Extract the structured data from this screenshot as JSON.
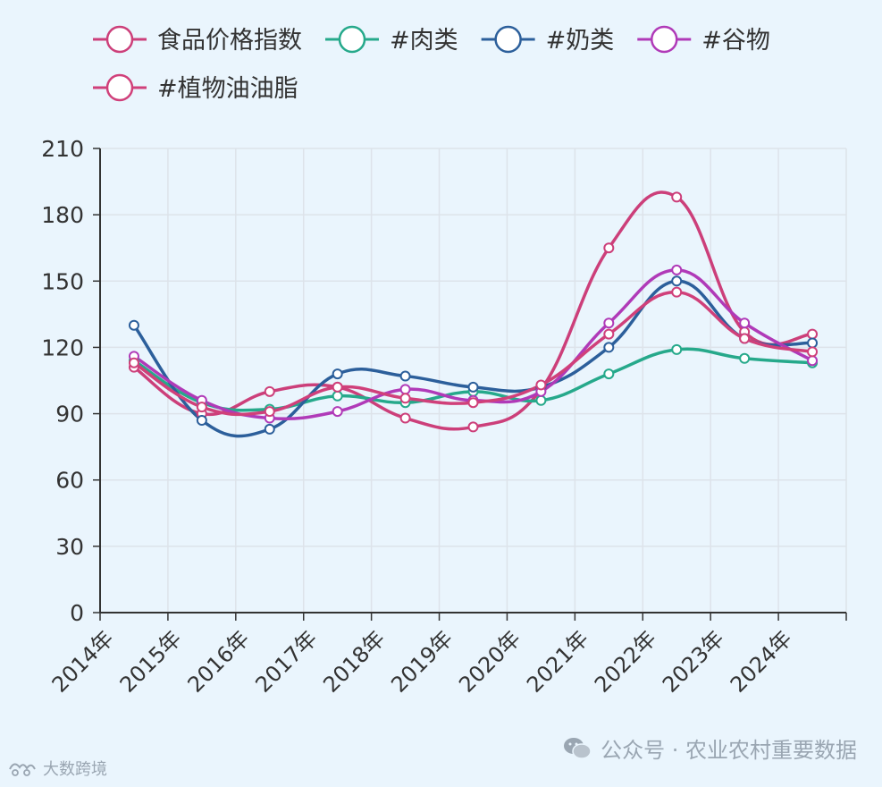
{
  "chart_data": {
    "type": "line",
    "smooth": true,
    "categories": [
      "2014年",
      "2015年",
      "2016年",
      "2017年",
      "2018年",
      "2019年",
      "2020年",
      "2021年",
      "2022年",
      "2023年",
      "2024年"
    ],
    "y_ticks": [
      "0",
      "30",
      "60",
      "90",
      "120",
      "150",
      "180",
      "210"
    ],
    "ylim": [
      0,
      210
    ],
    "grid": true,
    "legend_position": "top",
    "series": [
      {
        "name": "食品价格指数",
        "color": "#cc3f7a",
        "values": [
          111,
          90,
          100,
          102,
          88,
          84,
          101,
          165,
          188,
          127,
          126
        ]
      },
      {
        "name": "#肉类",
        "color": "#26a98b",
        "values": [
          114,
          95,
          92,
          98,
          95,
          100,
          96,
          108,
          119,
          115,
          113
        ]
      },
      {
        "name": "#奶类",
        "color": "#2c5f9b",
        "values": [
          130,
          87,
          83,
          108,
          107,
          102,
          102,
          120,
          150,
          124,
          122
        ]
      },
      {
        "name": "#谷物",
        "color": "#b03ab8",
        "values": [
          116,
          96,
          88,
          91,
          101,
          96,
          100,
          131,
          155,
          131,
          114
        ]
      },
      {
        "name": "#植物油油脂",
        "color": "#d0407a",
        "values": [
          113,
          93,
          91,
          102,
          97,
          95,
          103,
          126,
          145,
          124,
          118
        ]
      }
    ]
  },
  "watermarks": {
    "right": "公众号 · 农业农村重要数据",
    "left": "大数跨境"
  }
}
